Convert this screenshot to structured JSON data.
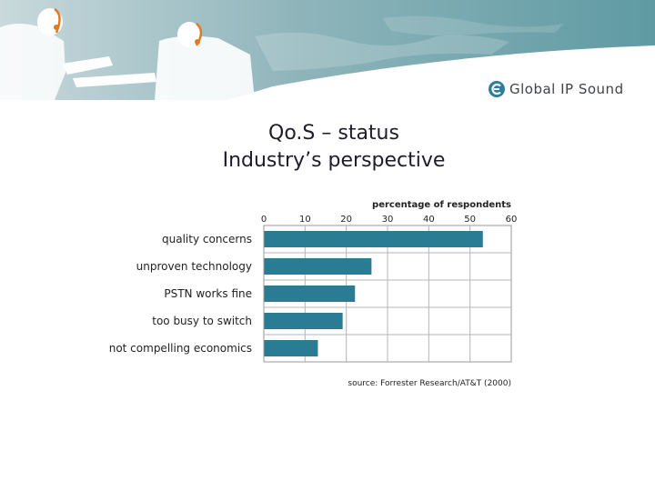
{
  "brand": {
    "name": "Global IP Sound",
    "accent": "#2d7e9a",
    "banner_color": "#639ea6"
  },
  "title": {
    "line1": "Qo.S – status",
    "line2": "Industry’s perspective"
  },
  "chart_data": {
    "type": "bar",
    "orientation": "horizontal",
    "xlabel": "percentage of respondents",
    "xlim": [
      0,
      60
    ],
    "xticks": [
      0,
      10,
      20,
      30,
      40,
      50,
      60
    ],
    "grid": true,
    "bar_color": "#2a7b94",
    "categories": [
      "quality concerns",
      "unproven technology",
      "PSTN works fine",
      "too busy to switch",
      "not compelling economics"
    ],
    "values": [
      53,
      26,
      22,
      19,
      13
    ],
    "source": "source: Forrester Research/AT&T (2000)"
  }
}
